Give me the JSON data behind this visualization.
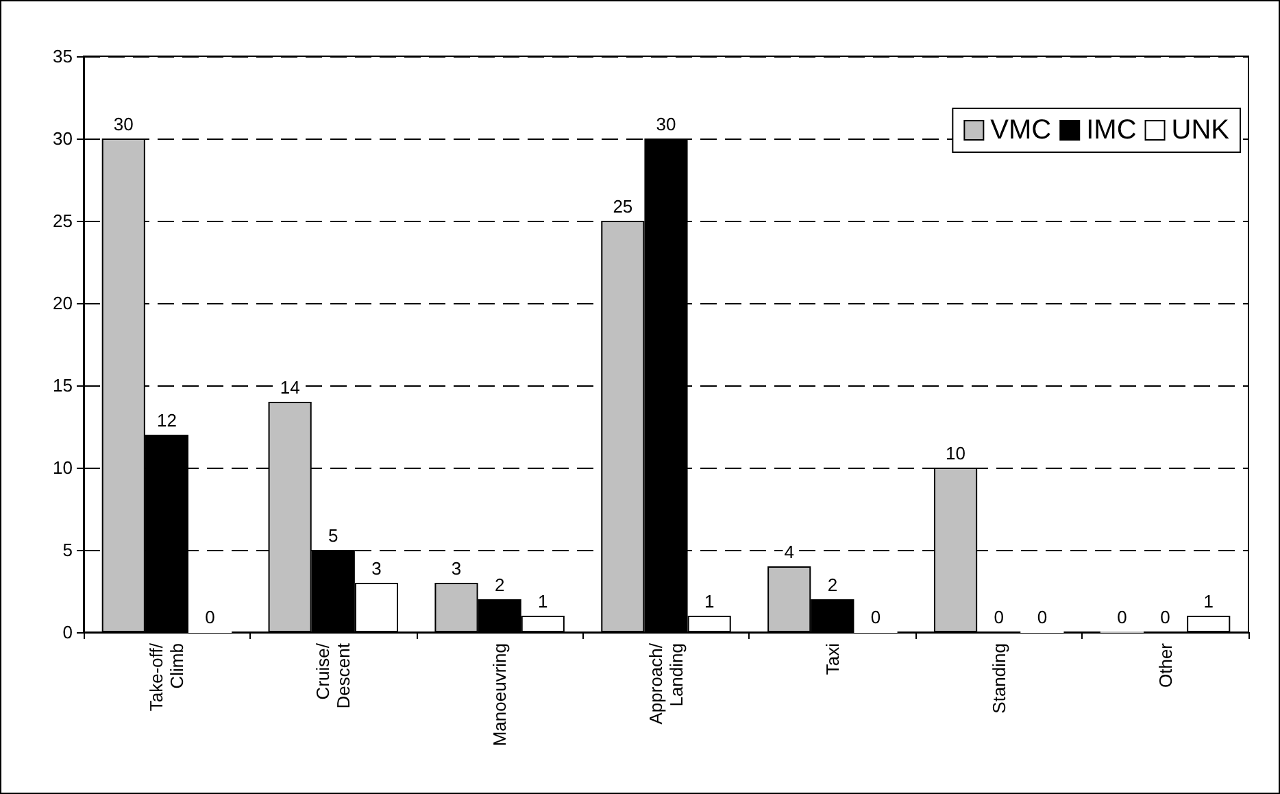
{
  "chart_data": {
    "type": "bar",
    "categories": [
      "Take-off/\nClimb",
      "Cruise/\nDescent",
      "Manoeuvring",
      "Approach/\nLanding",
      "Taxi",
      "Standing",
      "Other"
    ],
    "series": [
      {
        "name": "VMC",
        "color": "#c0c0c0",
        "values": [
          30,
          14,
          3,
          25,
          4,
          10,
          0
        ]
      },
      {
        "name": "IMC",
        "color": "#000000",
        "values": [
          12,
          5,
          2,
          30,
          2,
          0,
          0
        ]
      },
      {
        "name": "UNK",
        "color": "#ffffff",
        "values": [
          0,
          3,
          1,
          1,
          0,
          0,
          1
        ]
      }
    ],
    "ylim": [
      0,
      35
    ],
    "yticks": [
      0,
      5,
      10,
      15,
      20,
      25,
      30,
      35
    ],
    "grid": "y",
    "legend": "top right",
    "data_labels": true
  }
}
